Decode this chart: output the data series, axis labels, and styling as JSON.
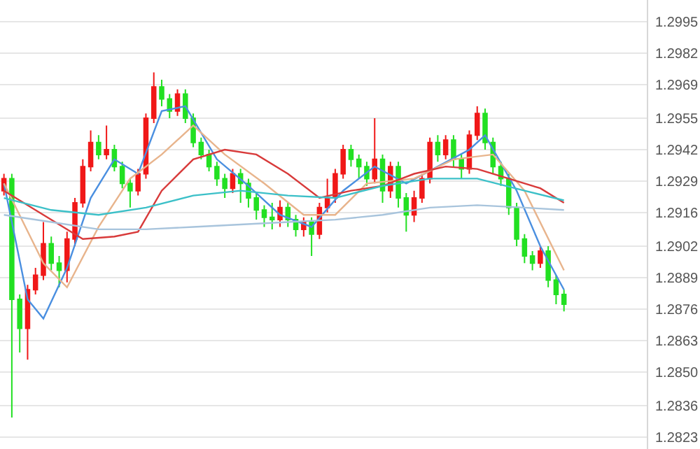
{
  "chart_data": {
    "type": "candlestick",
    "categories": [
      null,
      null,
      null,
      null,
      null,
      null,
      null,
      null,
      null,
      null,
      null,
      null,
      null,
      null,
      null,
      null,
      null,
      null,
      null,
      null,
      null,
      null,
      null,
      null,
      null,
      null,
      null,
      null,
      null,
      null,
      null,
      null,
      null,
      null,
      null,
      null,
      null,
      null,
      null,
      null,
      null,
      null,
      null,
      null,
      null,
      null,
      null,
      null,
      null,
      null,
      null,
      null,
      null,
      null,
      null,
      null,
      null,
      null,
      null,
      null,
      null,
      null,
      null,
      null,
      null,
      null,
      null,
      null,
      null,
      null,
      null,
      null,
      null,
      null,
      null,
      null,
      null,
      null,
      null,
      null,
      null,
      null
    ],
    "ohlc": [
      [
        1.2925,
        1.2932,
        1.2923,
        1.293
      ],
      [
        1.293,
        1.2932,
        1.2831,
        1.288
      ],
      [
        1.288,
        1.2882,
        1.2858,
        1.2868
      ],
      [
        1.2868,
        1.2886,
        1.2855,
        1.2884
      ],
      [
        1.2884,
        1.2893,
        1.2882,
        1.289
      ],
      [
        1.289,
        1.2912,
        1.2888,
        1.2903
      ],
      [
        1.2903,
        1.2906,
        1.2892,
        1.2895
      ],
      [
        1.2895,
        1.2898,
        1.2885,
        1.2892
      ],
      [
        1.2892,
        1.2908,
        1.2887,
        1.2905
      ],
      [
        1.2905,
        1.2922,
        1.2902,
        1.292
      ],
      [
        1.292,
        1.2938,
        1.2918,
        1.2935
      ],
      [
        1.2935,
        1.295,
        1.2933,
        1.2945
      ],
      [
        1.2945,
        1.2948,
        1.2938,
        1.294
      ],
      [
        1.294,
        1.2952,
        1.2938,
        1.2942
      ],
      [
        1.2942,
        1.2944,
        1.2933,
        1.2935
      ],
      [
        1.2935,
        1.2937,
        1.2926,
        1.2928
      ],
      [
        1.2928,
        1.293,
        1.2918,
        1.2925
      ],
      [
        1.2925,
        1.2934,
        1.2923,
        1.2932
      ],
      [
        1.2932,
        1.2957,
        1.293,
        1.2955
      ],
      [
        1.2955,
        1.2974,
        1.2953,
        1.2968
      ],
      [
        1.2968,
        1.2971,
        1.296,
        1.2963
      ],
      [
        1.2963,
        1.2965,
        1.2955,
        1.2958
      ],
      [
        1.2958,
        1.2967,
        1.2956,
        1.2965
      ],
      [
        1.2965,
        1.2967,
        1.2953,
        1.2955
      ],
      [
        1.2955,
        1.2957,
        1.2943,
        1.2945
      ],
      [
        1.2945,
        1.2947,
        1.2938,
        1.294
      ],
      [
        1.294,
        1.2942,
        1.2933,
        1.2935
      ],
      [
        1.2935,
        1.2937,
        1.2927,
        1.293
      ],
      [
        1.293,
        1.2932,
        1.2922,
        1.2926
      ],
      [
        1.2926,
        1.2934,
        1.2924,
        1.2932
      ],
      [
        1.2932,
        1.2934,
        1.292,
        1.2928
      ],
      [
        1.2928,
        1.293,
        1.2918,
        1.2922
      ],
      [
        1.2922,
        1.2924,
        1.2913,
        1.2917
      ],
      [
        1.2917,
        1.2919,
        1.291,
        1.2914
      ],
      [
        1.2914,
        1.292,
        1.2909,
        1.2913
      ],
      [
        1.2913,
        1.2921,
        1.291,
        1.2918
      ],
      [
        1.2918,
        1.292,
        1.291,
        1.2913
      ],
      [
        1.2913,
        1.2915,
        1.2906,
        1.2909
      ],
      [
        1.2909,
        1.2914,
        1.2906,
        1.2912
      ],
      [
        1.2912,
        1.2914,
        1.2898,
        1.2907
      ],
      [
        1.2907,
        1.292,
        1.2905,
        1.2918
      ],
      [
        1.2918,
        1.293,
        1.2916,
        1.2922
      ],
      [
        1.2922,
        1.2934,
        1.292,
        1.2932
      ],
      [
        1.2932,
        1.2944,
        1.293,
        1.2942
      ],
      [
        1.2942,
        1.2944,
        1.2935,
        1.2938
      ],
      [
        1.2938,
        1.294,
        1.293,
        1.2935
      ],
      [
        1.2935,
        1.2937,
        1.2927,
        1.293
      ],
      [
        1.293,
        1.2955,
        1.2928,
        1.2938
      ],
      [
        1.2938,
        1.294,
        1.292,
        1.2925
      ],
      [
        1.2925,
        1.2937,
        1.2922,
        1.2935
      ],
      [
        1.2935,
        1.2937,
        1.2918,
        1.2922
      ],
      [
        1.2922,
        1.2924,
        1.2908,
        1.2915
      ],
      [
        1.2915,
        1.2925,
        1.2912,
        1.2922
      ],
      [
        1.2922,
        1.2932,
        1.292,
        1.293
      ],
      [
        1.293,
        1.2947,
        1.2928,
        1.2945
      ],
      [
        1.2945,
        1.2948,
        1.2937,
        1.294
      ],
      [
        1.294,
        1.2948,
        1.2938,
        1.2946
      ],
      [
        1.2946,
        1.2948,
        1.2935,
        1.2938
      ],
      [
        1.2938,
        1.294,
        1.293,
        1.2934
      ],
      [
        1.2934,
        1.295,
        1.2932,
        1.2948
      ],
      [
        1.2948,
        1.296,
        1.2946,
        1.2957
      ],
      [
        1.2957,
        1.2959,
        1.2942,
        1.2945
      ],
      [
        1.2945,
        1.2947,
        1.2932,
        1.2935
      ],
      [
        1.2935,
        1.2937,
        1.2927,
        1.293
      ],
      [
        1.293,
        1.2932,
        1.2915,
        1.2918
      ],
      [
        1.2918,
        1.292,
        1.2902,
        1.2905
      ],
      [
        1.2905,
        1.2907,
        1.2895,
        1.2898
      ],
      [
        1.2898,
        1.29,
        1.2892,
        1.2895
      ],
      [
        1.2895,
        1.2902,
        1.2893,
        1.29
      ],
      [
        1.29,
        1.2902,
        1.2885,
        1.2888
      ],
      [
        1.2888,
        1.289,
        1.2878,
        1.2882
      ],
      [
        1.2882,
        1.2884,
        1.2875,
        1.2878
      ],
      null,
      null,
      null,
      null,
      null,
      null,
      null,
      null,
      null,
      null
    ],
    "series": [
      {
        "type": "line",
        "color": "#4a8fe0",
        "values": [
          1.2928,
          null,
          null,
          1.288,
          null,
          1.2872,
          null,
          null,
          1.2893,
          null,
          null,
          1.2922,
          null,
          null,
          1.2938,
          null,
          null,
          1.2932,
          null,
          null,
          1.2958,
          null,
          null,
          1.296,
          null,
          null,
          null,
          1.2938,
          null,
          null,
          null,
          1.2927,
          null,
          null,
          null,
          1.2915,
          null,
          null,
          null,
          1.291,
          null,
          null,
          null,
          1.2925,
          null,
          null,
          null,
          1.2935,
          null,
          null,
          null,
          1.2928,
          null,
          null,
          null,
          1.2935,
          null,
          null,
          null,
          1.2942,
          null,
          1.2948,
          null,
          null,
          null,
          1.2925,
          null,
          null,
          1.2902,
          null,
          null,
          1.2884,
          null,
          null,
          null,
          null,
          null,
          null,
          null,
          null,
          null,
          null
        ]
      },
      {
        "type": "line",
        "color": "#e8b48c",
        "values": [
          1.2928,
          null,
          null,
          null,
          null,
          1.2895,
          null,
          null,
          1.2885,
          null,
          null,
          null,
          1.291,
          null,
          null,
          null,
          1.293,
          null,
          null,
          null,
          1.294,
          null,
          null,
          null,
          1.2952,
          null,
          null,
          null,
          1.294,
          null,
          null,
          null,
          null,
          1.2928,
          null,
          null,
          null,
          null,
          1.2915,
          null,
          null,
          null,
          1.2915,
          null,
          null,
          null,
          1.2928,
          null,
          null,
          null,
          null,
          null,
          1.293,
          null,
          null,
          null,
          null,
          1.2938,
          null,
          null,
          null,
          null,
          1.294,
          null,
          null,
          null,
          1.2925,
          null,
          null,
          null,
          null,
          1.2892,
          null,
          null,
          null,
          null,
          null,
          null,
          null,
          null,
          null,
          null
        ]
      },
      {
        "type": "line",
        "color": "#d83a3a",
        "values": [
          1.2925,
          null,
          null,
          null,
          null,
          1.2915,
          null,
          null,
          null,
          null,
          1.2905,
          null,
          null,
          null,
          1.2906,
          null,
          null,
          1.2908,
          null,
          null,
          1.2925,
          null,
          null,
          null,
          1.2938,
          null,
          null,
          null,
          1.2942,
          null,
          null,
          null,
          1.294,
          null,
          null,
          null,
          1.2932,
          null,
          null,
          null,
          1.2922,
          null,
          null,
          null,
          1.2925,
          null,
          null,
          null,
          1.2927,
          null,
          null,
          null,
          1.2932,
          null,
          null,
          null,
          1.2935,
          null,
          null,
          null,
          1.2934,
          null,
          null,
          null,
          1.293,
          null,
          null,
          null,
          1.2926,
          null,
          null,
          1.292,
          null,
          null,
          null,
          null,
          null,
          null,
          null,
          null,
          null,
          null
        ]
      },
      {
        "type": "line",
        "color": "#3cc0c8",
        "values": [
          1.2922,
          null,
          null,
          null,
          null,
          null,
          1.2917,
          null,
          null,
          null,
          null,
          null,
          1.2915,
          null,
          null,
          null,
          null,
          null,
          1.2918,
          null,
          null,
          null,
          null,
          null,
          1.2923,
          null,
          null,
          null,
          null,
          null,
          1.2925,
          null,
          null,
          null,
          null,
          null,
          1.2923,
          null,
          null,
          null,
          null,
          null,
          1.2922,
          null,
          null,
          null,
          null,
          null,
          1.2927,
          null,
          null,
          null,
          null,
          null,
          1.293,
          null,
          null,
          null,
          null,
          null,
          1.293,
          null,
          null,
          null,
          null,
          null,
          1.2925,
          null,
          null,
          null,
          null,
          1.2921,
          null,
          null,
          null,
          null,
          null,
          null,
          null,
          null,
          null,
          null
        ]
      },
      {
        "type": "line",
        "color": "#a8c4dc",
        "values": [
          1.2915,
          null,
          null,
          null,
          null,
          null,
          1.2912,
          null,
          null,
          null,
          null,
          null,
          1.2909,
          null,
          null,
          null,
          null,
          null,
          1.2909,
          null,
          null,
          null,
          null,
          null,
          1.291,
          null,
          null,
          null,
          null,
          null,
          1.2911,
          null,
          null,
          null,
          null,
          null,
          1.2912,
          null,
          null,
          null,
          null,
          null,
          1.2913,
          null,
          null,
          null,
          null,
          null,
          1.2915,
          null,
          null,
          null,
          null,
          null,
          1.2918,
          null,
          null,
          null,
          null,
          null,
          1.2919,
          null,
          null,
          null,
          null,
          null,
          1.2918,
          null,
          null,
          null,
          null,
          1.2917,
          null,
          null,
          null,
          null,
          null,
          null,
          null,
          null,
          null,
          null
        ]
      }
    ],
    "ylim": [
      1.2818,
      1.3004
    ],
    "yticks": [
      1.2995,
      1.2982,
      1.2969,
      1.2955,
      1.2942,
      1.2929,
      1.2916,
      1.2902,
      1.2889,
      1.2876,
      1.2863,
      {
        "value": 1.285,
        "label": "1.2850"
      },
      1.2836,
      1.2823
    ],
    "tick_labels": "y",
    "grid": "y"
  }
}
